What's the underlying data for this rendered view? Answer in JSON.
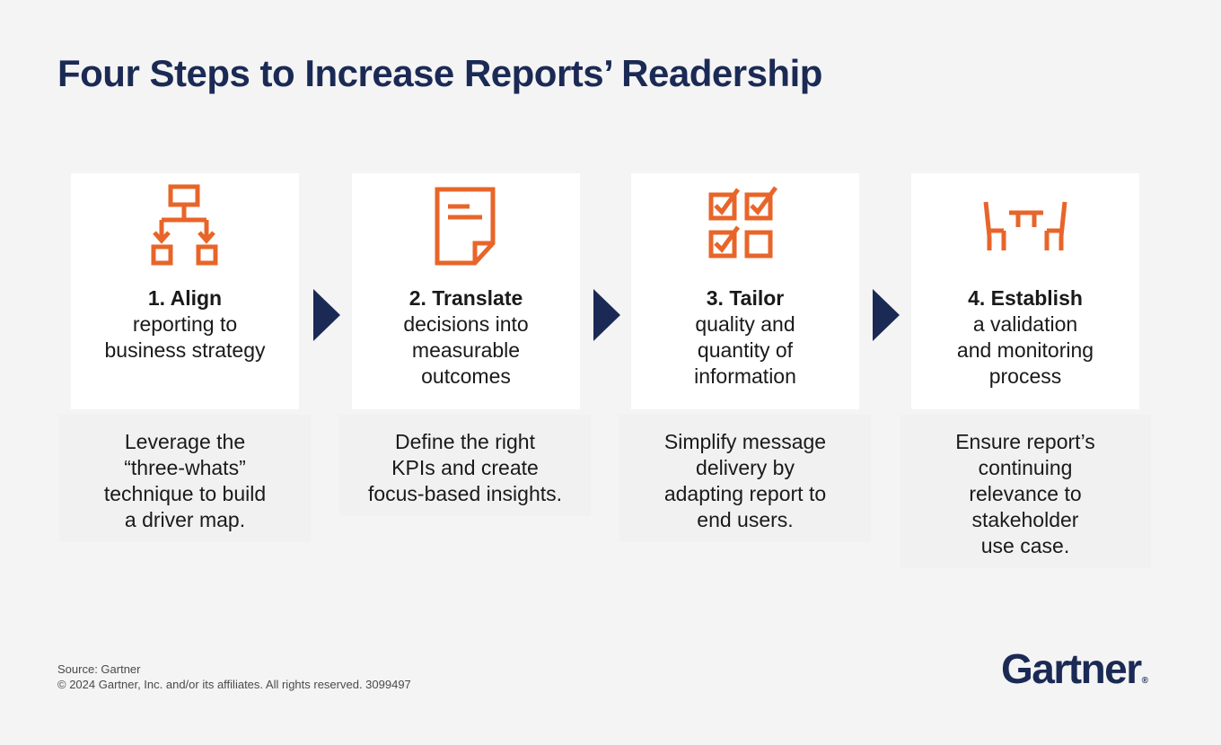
{
  "title": "Four Steps to Increase Reports’ Readership",
  "steps": [
    {
      "icon": "flowchart-icon",
      "heading": "1. Align",
      "subtitle_lines": [
        "reporting to",
        "business strategy"
      ],
      "description_lines": [
        "Leverage the",
        "“three-whats”",
        "technique to build",
        "a driver map."
      ]
    },
    {
      "icon": "document-icon",
      "heading": "2. Translate",
      "subtitle_lines": [
        "decisions into",
        "measurable",
        "outcomes"
      ],
      "description_lines": [
        "Define the right",
        "KPIs and create",
        "focus-based insights."
      ]
    },
    {
      "icon": "checklist-grid-icon",
      "heading": "3. Tailor",
      "subtitle_lines": [
        "quality and",
        "quantity of",
        "information"
      ],
      "description_lines": [
        "Simplify message",
        "delivery by",
        "adapting report to",
        "end users."
      ]
    },
    {
      "icon": "table-chairs-icon",
      "heading": "4. Establish",
      "subtitle_lines": [
        "a validation",
        "and monitoring",
        "process"
      ],
      "description_lines": [
        "Ensure report’s",
        "continuing",
        "relevance to",
        "stakeholder",
        "use case."
      ]
    }
  ],
  "footer": {
    "source": "Source: Gartner",
    "copyright": "© 2024 Gartner, Inc. and/or its affiliates. All rights reserved. 3099497"
  },
  "logo": {
    "text": "Gartner",
    "mark": "®"
  },
  "colors": {
    "accent": "#e8652a",
    "navy": "#1b2a55",
    "card_bg": "#ffffff",
    "page_bg": "#f4f4f4"
  }
}
